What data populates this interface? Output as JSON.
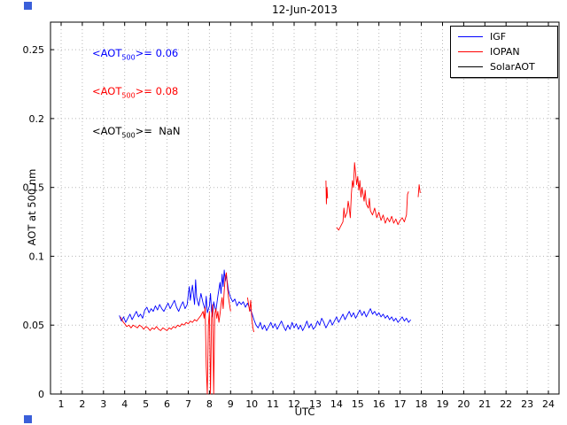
{
  "title": "12-Jun-2013",
  "ylabel": "AOT at 500 nm",
  "xlabel": "UTC",
  "annotations": [
    {
      "pre": "<AOT",
      "sub": "500",
      "post": ">= 0.06",
      "color": "#0000ff"
    },
    {
      "pre": "<AOT",
      "sub": "500",
      "post": ">= 0.08",
      "color": "#ff0000"
    },
    {
      "pre": "<AOT",
      "sub": "500",
      "post": ">=  NaN",
      "color": "#000000"
    }
  ],
  "legend": {
    "items": [
      {
        "label": "IGF",
        "color": "#0000ff"
      },
      {
        "label": "IOPAN",
        "color": "#ff0000"
      },
      {
        "label": "SolarAOT",
        "color": "#000000"
      }
    ]
  },
  "artifacts": [
    {
      "name": "screen-artifact-top-left",
      "color": "#3a5fd9"
    },
    {
      "name": "screen-artifact-bottom-left",
      "color": "#3a5fd9"
    }
  ],
  "chart_data": {
    "type": "line",
    "title": "12-Jun-2013",
    "xlabel": "UTC",
    "ylabel": "AOT at 500 nm",
    "xlim": [
      0.5,
      24.5
    ],
    "ylim": [
      0,
      0.27
    ],
    "grid": true,
    "legend_position": "top-right",
    "xticks": [
      1,
      2,
      3,
      4,
      5,
      6,
      7,
      8,
      9,
      10,
      11,
      12,
      13,
      14,
      15,
      16,
      17,
      18,
      19,
      20,
      21,
      22,
      23,
      24
    ],
    "xticklabels": [
      "1",
      "2",
      "3",
      "4",
      "5",
      "6",
      "7",
      "8",
      "9",
      "10",
      "11",
      "12",
      "13",
      "14",
      "15",
      "16",
      "17",
      "18",
      "19",
      "20",
      "21",
      "22",
      "23",
      "24"
    ],
    "yticks": [
      0,
      0.05,
      0.1,
      0.15,
      0.2,
      0.25
    ],
    "yticklabels": [
      "0",
      "0.05",
      "0.1",
      "0.15",
      "0.2",
      "0.25"
    ],
    "series": [
      {
        "name": "IGF",
        "color": "#0000ff",
        "mean_aot500": "0.06",
        "points": [
          [
            3.75,
            0.057
          ],
          [
            3.85,
            0.053
          ],
          [
            3.95,
            0.056
          ],
          [
            4.05,
            0.052
          ],
          [
            4.15,
            0.055
          ],
          [
            4.25,
            0.058
          ],
          [
            4.35,
            0.054
          ],
          [
            4.45,
            0.057
          ],
          [
            4.55,
            0.06
          ],
          [
            4.65,
            0.056
          ],
          [
            4.75,
            0.058
          ],
          [
            4.85,
            0.055
          ],
          [
            4.95,
            0.061
          ],
          [
            5.05,
            0.063
          ],
          [
            5.15,
            0.059
          ],
          [
            5.25,
            0.062
          ],
          [
            5.35,
            0.06
          ],
          [
            5.45,
            0.064
          ],
          [
            5.55,
            0.061
          ],
          [
            5.65,
            0.065
          ],
          [
            5.75,
            0.062
          ],
          [
            5.85,
            0.06
          ],
          [
            5.95,
            0.063
          ],
          [
            6.05,
            0.066
          ],
          [
            6.15,
            0.062
          ],
          [
            6.25,
            0.065
          ],
          [
            6.35,
            0.068
          ],
          [
            6.45,
            0.063
          ],
          [
            6.55,
            0.06
          ],
          [
            6.65,
            0.064
          ],
          [
            6.75,
            0.067
          ],
          [
            6.85,
            0.062
          ],
          [
            6.95,
            0.065
          ],
          [
            7.0,
            0.072
          ],
          [
            7.05,
            0.078
          ],
          [
            7.1,
            0.068
          ],
          [
            7.2,
            0.079
          ],
          [
            7.3,
            0.065
          ],
          [
            7.35,
            0.083
          ],
          [
            7.4,
            0.07
          ],
          [
            7.5,
            0.064
          ],
          [
            7.6,
            0.073
          ],
          [
            7.7,
            0.066
          ],
          [
            7.8,
            0.061
          ],
          [
            7.85,
            0.071
          ],
          [
            7.9,
            0.059
          ],
          [
            8.0,
            0.064
          ],
          [
            8.05,
            0.073
          ],
          [
            8.1,
            0.06
          ],
          [
            8.15,
            0.056
          ],
          [
            8.2,
            0.067
          ],
          [
            8.3,
            0.06
          ],
          [
            8.4,
            0.071
          ],
          [
            8.5,
            0.081
          ],
          [
            8.55,
            0.073
          ],
          [
            8.6,
            0.087
          ],
          [
            8.65,
            0.078
          ],
          [
            8.7,
            0.09
          ],
          [
            8.75,
            0.082
          ],
          [
            8.8,
            0.086
          ],
          [
            8.9,
            0.075
          ],
          [
            9.0,
            0.07
          ],
          [
            9.1,
            0.067
          ],
          [
            9.2,
            0.069
          ],
          [
            9.3,
            0.064
          ],
          [
            9.4,
            0.067
          ],
          [
            9.5,
            0.065
          ],
          [
            9.6,
            0.067
          ],
          [
            9.7,
            0.063
          ],
          [
            9.8,
            0.066
          ],
          [
            9.9,
            0.062
          ],
          [
            10.0,
            0.059
          ],
          [
            10.1,
            0.054
          ],
          [
            10.2,
            0.05
          ],
          [
            10.3,
            0.048
          ],
          [
            10.4,
            0.052
          ],
          [
            10.5,
            0.047
          ],
          [
            10.6,
            0.05
          ],
          [
            10.7,
            0.046
          ],
          [
            10.8,
            0.049
          ],
          [
            10.9,
            0.052
          ],
          [
            11.0,
            0.048
          ],
          [
            11.1,
            0.051
          ],
          [
            11.2,
            0.047
          ],
          [
            11.3,
            0.05
          ],
          [
            11.4,
            0.053
          ],
          [
            11.5,
            0.049
          ],
          [
            11.6,
            0.046
          ],
          [
            11.7,
            0.05
          ],
          [
            11.8,
            0.047
          ],
          [
            11.9,
            0.052
          ],
          [
            12.0,
            0.048
          ],
          [
            12.1,
            0.051
          ],
          [
            12.2,
            0.047
          ],
          [
            12.3,
            0.05
          ],
          [
            12.4,
            0.046
          ],
          [
            12.5,
            0.049
          ],
          [
            12.6,
            0.053
          ],
          [
            12.7,
            0.048
          ],
          [
            12.8,
            0.051
          ],
          [
            12.9,
            0.047
          ],
          [
            13.0,
            0.049
          ],
          [
            13.1,
            0.053
          ],
          [
            13.2,
            0.05
          ],
          [
            13.3,
            0.055
          ],
          [
            13.4,
            0.052
          ],
          [
            13.5,
            0.048
          ],
          [
            13.6,
            0.051
          ],
          [
            13.7,
            0.054
          ],
          [
            13.8,
            0.05
          ],
          [
            13.9,
            0.053
          ],
          [
            14.0,
            0.056
          ],
          [
            14.1,
            0.052
          ],
          [
            14.2,
            0.055
          ],
          [
            14.3,
            0.058
          ],
          [
            14.4,
            0.054
          ],
          [
            14.5,
            0.057
          ],
          [
            14.6,
            0.06
          ],
          [
            14.7,
            0.056
          ],
          [
            14.8,
            0.059
          ],
          [
            14.9,
            0.055
          ],
          [
            15.0,
            0.058
          ],
          [
            15.1,
            0.061
          ],
          [
            15.2,
            0.057
          ],
          [
            15.3,
            0.06
          ],
          [
            15.4,
            0.056
          ],
          [
            15.5,
            0.059
          ],
          [
            15.6,
            0.062
          ],
          [
            15.7,
            0.058
          ],
          [
            15.8,
            0.06
          ],
          [
            15.9,
            0.057
          ],
          [
            16.0,
            0.059
          ],
          [
            16.1,
            0.056
          ],
          [
            16.2,
            0.058
          ],
          [
            16.3,
            0.055
          ],
          [
            16.4,
            0.057
          ],
          [
            16.5,
            0.054
          ],
          [
            16.6,
            0.056
          ],
          [
            16.7,
            0.053
          ],
          [
            16.8,
            0.055
          ],
          [
            16.9,
            0.052
          ],
          [
            17.0,
            0.054
          ],
          [
            17.1,
            0.056
          ],
          [
            17.2,
            0.053
          ],
          [
            17.3,
            0.055
          ],
          [
            17.4,
            0.052
          ],
          [
            17.5,
            0.054
          ]
        ]
      },
      {
        "name": "IOPAN",
        "color": "#ff0000",
        "mean_aot500": "0.08",
        "points": [
          [
            3.8,
            0.056
          ],
          [
            3.9,
            0.053
          ],
          [
            4.0,
            0.051
          ],
          [
            4.1,
            0.049
          ],
          [
            4.2,
            0.05
          ],
          [
            4.3,
            0.048
          ],
          [
            4.4,
            0.05
          ],
          [
            4.5,
            0.049
          ],
          [
            4.6,
            0.048
          ],
          [
            4.7,
            0.05
          ],
          [
            4.8,
            0.049
          ],
          [
            4.9,
            0.047
          ],
          [
            5.0,
            0.049
          ],
          [
            5.1,
            0.048
          ],
          [
            5.2,
            0.046
          ],
          [
            5.3,
            0.048
          ],
          [
            5.4,
            0.047
          ],
          [
            5.5,
            0.049
          ],
          [
            5.6,
            0.047
          ],
          [
            5.7,
            0.046
          ],
          [
            5.8,
            0.048
          ],
          [
            5.9,
            0.047
          ],
          [
            6.0,
            0.046
          ],
          [
            6.1,
            0.048
          ],
          [
            6.2,
            0.047
          ],
          [
            6.3,
            0.049
          ],
          [
            6.4,
            0.048
          ],
          [
            6.5,
            0.05
          ],
          [
            6.6,
            0.049
          ],
          [
            6.7,
            0.051
          ],
          [
            6.8,
            0.05
          ],
          [
            6.9,
            0.052
          ],
          [
            7.0,
            0.051
          ],
          [
            7.1,
            0.053
          ],
          [
            7.2,
            0.052
          ],
          [
            7.3,
            0.054
          ],
          [
            7.4,
            0.053
          ],
          [
            7.5,
            0.055
          ],
          [
            7.6,
            0.057
          ],
          [
            7.7,
            0.06
          ],
          [
            7.75,
            0.055
          ],
          [
            7.8,
            0.063
          ],
          [
            7.85,
            0.02
          ],
          [
            7.9,
            0.0
          ],
          [
            7.95,
            0.05
          ],
          [
            8.0,
            0.06
          ],
          [
            8.05,
            0.0
          ],
          [
            8.1,
            0.055
          ],
          [
            8.15,
            0.065
          ],
          [
            8.2,
            0.0
          ],
          [
            8.25,
            0.058
          ],
          [
            8.3,
            0.062
          ],
          [
            8.35,
            0.055
          ],
          [
            8.4,
            0.06
          ],
          [
            8.45,
            0.052
          ],
          [
            8.5,
            0.058
          ],
          [
            8.55,
            0.065
          ],
          [
            8.6,
            0.07
          ],
          [
            8.65,
            0.062
          ],
          [
            8.7,
            0.075
          ],
          [
            8.75,
            0.085
          ],
          [
            8.8,
            0.088
          ],
          [
            8.85,
            0.078
          ],
          [
            8.9,
            0.07
          ],
          [
            8.95,
            0.065
          ],
          [
            9.0,
            0.06
          ],
          null,
          [
            9.8,
            0.07
          ],
          [
            9.85,
            0.065
          ],
          [
            9.9,
            0.06
          ],
          [
            9.95,
            0.068
          ],
          [
            10.0,
            0.055
          ],
          [
            10.05,
            0.048
          ],
          [
            10.1,
            0.045
          ],
          null,
          [
            13.5,
            0.155
          ],
          [
            13.52,
            0.138
          ],
          [
            13.55,
            0.15
          ],
          [
            13.58,
            0.142
          ],
          null,
          [
            14.0,
            0.121
          ],
          [
            14.1,
            0.119
          ],
          [
            14.2,
            0.122
          ],
          [
            14.3,
            0.125
          ],
          [
            14.35,
            0.135
          ],
          [
            14.4,
            0.128
          ],
          [
            14.5,
            0.132
          ],
          [
            14.55,
            0.14
          ],
          [
            14.6,
            0.135
          ],
          [
            14.65,
            0.128
          ],
          [
            14.7,
            0.145
          ],
          [
            14.75,
            0.155
          ],
          [
            14.8,
            0.15
          ],
          [
            14.85,
            0.168
          ],
          [
            14.9,
            0.16
          ],
          [
            14.95,
            0.152
          ],
          [
            15.0,
            0.158
          ],
          [
            15.05,
            0.148
          ],
          [
            15.1,
            0.155
          ],
          [
            15.15,
            0.143
          ],
          [
            15.2,
            0.15
          ],
          [
            15.3,
            0.14
          ],
          [
            15.35,
            0.148
          ],
          [
            15.4,
            0.138
          ],
          [
            15.5,
            0.135
          ],
          [
            15.55,
            0.142
          ],
          [
            15.6,
            0.133
          ],
          [
            15.7,
            0.13
          ],
          [
            15.8,
            0.135
          ],
          [
            15.9,
            0.128
          ],
          [
            16.0,
            0.132
          ],
          [
            16.1,
            0.126
          ],
          [
            16.2,
            0.13
          ],
          [
            16.3,
            0.124
          ],
          [
            16.4,
            0.128
          ],
          [
            16.5,
            0.125
          ],
          [
            16.6,
            0.129
          ],
          [
            16.7,
            0.124
          ],
          [
            16.8,
            0.127
          ],
          [
            16.9,
            0.123
          ],
          [
            17.0,
            0.126
          ],
          [
            17.1,
            0.128
          ],
          [
            17.2,
            0.125
          ],
          [
            17.3,
            0.13
          ],
          [
            17.35,
            0.145
          ],
          [
            17.4,
            0.147
          ],
          null,
          [
            17.85,
            0.143
          ],
          [
            17.9,
            0.152
          ],
          [
            17.95,
            0.146
          ]
        ]
      },
      {
        "name": "SolarAOT",
        "color": "#000000",
        "mean_aot500": "NaN",
        "points": []
      }
    ]
  }
}
